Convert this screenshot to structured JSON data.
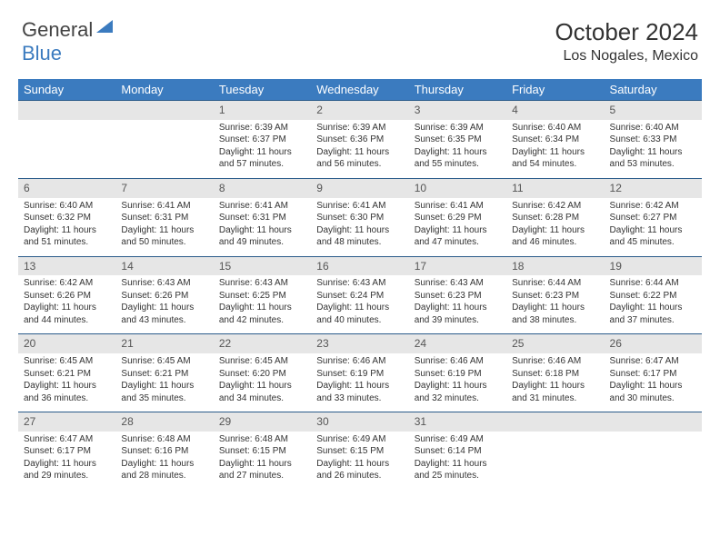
{
  "brand": {
    "part1": "General",
    "part2": "Blue"
  },
  "title": {
    "month": "October 2024",
    "location": "Los Nogales, Mexico"
  },
  "colors": {
    "header_bg": "#3b7bbf",
    "header_text": "#ffffff",
    "daynum_bg": "#e6e6e6",
    "row_border": "#2a5b8a",
    "body_text": "#333333"
  },
  "weekdays": [
    "Sunday",
    "Monday",
    "Tuesday",
    "Wednesday",
    "Thursday",
    "Friday",
    "Saturday"
  ],
  "layout": {
    "first_weekday_index": 2,
    "days_in_month": 31
  },
  "days": {
    "1": {
      "sunrise": "6:39 AM",
      "sunset": "6:37 PM",
      "daylight": "11 hours and 57 minutes."
    },
    "2": {
      "sunrise": "6:39 AM",
      "sunset": "6:36 PM",
      "daylight": "11 hours and 56 minutes."
    },
    "3": {
      "sunrise": "6:39 AM",
      "sunset": "6:35 PM",
      "daylight": "11 hours and 55 minutes."
    },
    "4": {
      "sunrise": "6:40 AM",
      "sunset": "6:34 PM",
      "daylight": "11 hours and 54 minutes."
    },
    "5": {
      "sunrise": "6:40 AM",
      "sunset": "6:33 PM",
      "daylight": "11 hours and 53 minutes."
    },
    "6": {
      "sunrise": "6:40 AM",
      "sunset": "6:32 PM",
      "daylight": "11 hours and 51 minutes."
    },
    "7": {
      "sunrise": "6:41 AM",
      "sunset": "6:31 PM",
      "daylight": "11 hours and 50 minutes."
    },
    "8": {
      "sunrise": "6:41 AM",
      "sunset": "6:31 PM",
      "daylight": "11 hours and 49 minutes."
    },
    "9": {
      "sunrise": "6:41 AM",
      "sunset": "6:30 PM",
      "daylight": "11 hours and 48 minutes."
    },
    "10": {
      "sunrise": "6:41 AM",
      "sunset": "6:29 PM",
      "daylight": "11 hours and 47 minutes."
    },
    "11": {
      "sunrise": "6:42 AM",
      "sunset": "6:28 PM",
      "daylight": "11 hours and 46 minutes."
    },
    "12": {
      "sunrise": "6:42 AM",
      "sunset": "6:27 PM",
      "daylight": "11 hours and 45 minutes."
    },
    "13": {
      "sunrise": "6:42 AM",
      "sunset": "6:26 PM",
      "daylight": "11 hours and 44 minutes."
    },
    "14": {
      "sunrise": "6:43 AM",
      "sunset": "6:26 PM",
      "daylight": "11 hours and 43 minutes."
    },
    "15": {
      "sunrise": "6:43 AM",
      "sunset": "6:25 PM",
      "daylight": "11 hours and 42 minutes."
    },
    "16": {
      "sunrise": "6:43 AM",
      "sunset": "6:24 PM",
      "daylight": "11 hours and 40 minutes."
    },
    "17": {
      "sunrise": "6:43 AM",
      "sunset": "6:23 PM",
      "daylight": "11 hours and 39 minutes."
    },
    "18": {
      "sunrise": "6:44 AM",
      "sunset": "6:23 PM",
      "daylight": "11 hours and 38 minutes."
    },
    "19": {
      "sunrise": "6:44 AM",
      "sunset": "6:22 PM",
      "daylight": "11 hours and 37 minutes."
    },
    "20": {
      "sunrise": "6:45 AM",
      "sunset": "6:21 PM",
      "daylight": "11 hours and 36 minutes."
    },
    "21": {
      "sunrise": "6:45 AM",
      "sunset": "6:21 PM",
      "daylight": "11 hours and 35 minutes."
    },
    "22": {
      "sunrise": "6:45 AM",
      "sunset": "6:20 PM",
      "daylight": "11 hours and 34 minutes."
    },
    "23": {
      "sunrise": "6:46 AM",
      "sunset": "6:19 PM",
      "daylight": "11 hours and 33 minutes."
    },
    "24": {
      "sunrise": "6:46 AM",
      "sunset": "6:19 PM",
      "daylight": "11 hours and 32 minutes."
    },
    "25": {
      "sunrise": "6:46 AM",
      "sunset": "6:18 PM",
      "daylight": "11 hours and 31 minutes."
    },
    "26": {
      "sunrise": "6:47 AM",
      "sunset": "6:17 PM",
      "daylight": "11 hours and 30 minutes."
    },
    "27": {
      "sunrise": "6:47 AM",
      "sunset": "6:17 PM",
      "daylight": "11 hours and 29 minutes."
    },
    "28": {
      "sunrise": "6:48 AM",
      "sunset": "6:16 PM",
      "daylight": "11 hours and 28 minutes."
    },
    "29": {
      "sunrise": "6:48 AM",
      "sunset": "6:15 PM",
      "daylight": "11 hours and 27 minutes."
    },
    "30": {
      "sunrise": "6:49 AM",
      "sunset": "6:15 PM",
      "daylight": "11 hours and 26 minutes."
    },
    "31": {
      "sunrise": "6:49 AM",
      "sunset": "6:14 PM",
      "daylight": "11 hours and 25 minutes."
    }
  },
  "labels": {
    "sunrise": "Sunrise:",
    "sunset": "Sunset:",
    "daylight": "Daylight:"
  }
}
